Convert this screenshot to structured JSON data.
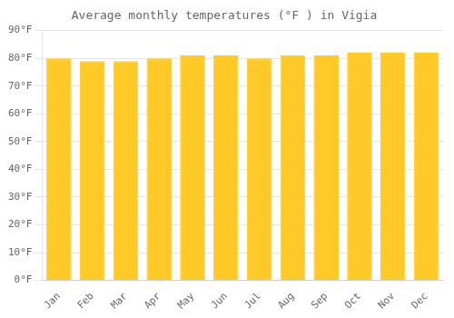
{
  "chart_data": {
    "type": "bar",
    "title": "Average monthly temperatures (°F ) in Vigia",
    "categories": [
      "Jan",
      "Feb",
      "Mar",
      "Apr",
      "May",
      "Jun",
      "Jul",
      "Aug",
      "Sep",
      "Oct",
      "Nov",
      "Dec"
    ],
    "values": [
      80,
      79,
      79,
      80,
      81,
      81,
      80,
      81,
      81,
      82,
      82,
      82
    ],
    "color": "#FFCA28",
    "ylim": [
      0,
      90
    ],
    "yticks": [
      {
        "value": 0,
        "label": "0°F"
      },
      {
        "value": 10,
        "label": "10°F"
      },
      {
        "value": 20,
        "label": "20°F"
      },
      {
        "value": 30,
        "label": "30°F"
      },
      {
        "value": 40,
        "label": "40°F"
      },
      {
        "value": 50,
        "label": "50°F"
      },
      {
        "value": 60,
        "label": "60°F"
      },
      {
        "value": 70,
        "label": "70°F"
      },
      {
        "value": 80,
        "label": "80°F"
      },
      {
        "value": 90,
        "label": "90°F"
      }
    ],
    "grid": true
  }
}
